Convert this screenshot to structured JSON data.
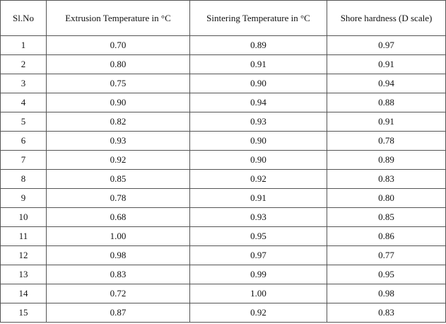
{
  "table": {
    "header": [
      "Sl.No",
      "Extrusion Temperature in °C",
      "Sintering Temperature in °C",
      "Shore hardness (D scale)"
    ],
    "rows": [
      [
        "1",
        "0.70",
        "0.89",
        "0.97"
      ],
      [
        "2",
        "0.80",
        "0.91",
        "0.91"
      ],
      [
        "3",
        "0.75",
        "0.90",
        "0.94"
      ],
      [
        "4",
        "0.90",
        "0.94",
        "0.88"
      ],
      [
        "5",
        "0.82",
        "0.93",
        "0.91"
      ],
      [
        "6",
        "0.93",
        "0.90",
        "0.78"
      ],
      [
        "7",
        "0.92",
        "0.90",
        "0.89"
      ],
      [
        "8",
        "0.85",
        "0.92",
        "0.83"
      ],
      [
        "9",
        "0.78",
        "0.91",
        "0.80"
      ],
      [
        "10",
        "0.68",
        "0.93",
        "0.85"
      ],
      [
        "11",
        "1.00",
        "0.95",
        "0.86"
      ],
      [
        "12",
        "0.98",
        "0.97",
        "0.77"
      ],
      [
        "13",
        "0.83",
        "0.99",
        "0.95"
      ],
      [
        "14",
        "0.72",
        "1.00",
        "0.98"
      ],
      [
        "15",
        "0.87",
        "0.92",
        "0.83"
      ]
    ]
  }
}
